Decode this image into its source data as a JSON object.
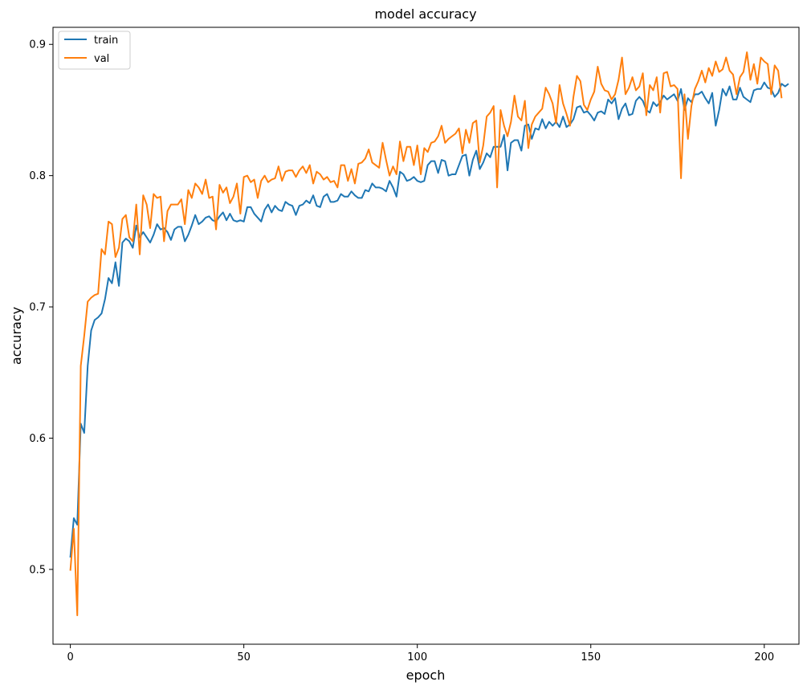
{
  "chart_data": {
    "type": "line",
    "title": "model accuracy",
    "xlabel": "epoch",
    "ylabel": "accuracy",
    "xlim": [
      -5,
      210
    ],
    "ylim": [
      0.443,
      0.913
    ],
    "xticks": [
      0,
      50,
      100,
      150,
      200
    ],
    "yticks": [
      0.5,
      0.6,
      0.7,
      0.8,
      0.9
    ],
    "xtick_labels": [
      "0",
      "50",
      "100",
      "150",
      "200"
    ],
    "ytick_labels": [
      "0.5",
      "0.6",
      "0.7",
      "0.8",
      "0.9"
    ],
    "grid": false,
    "legend_position": "top-left",
    "series": [
      {
        "name": "train",
        "color": "#1f77b4",
        "values": [
          0.509,
          0.539,
          0.534,
          0.611,
          0.604,
          0.655,
          0.682,
          0.69,
          0.692,
          0.695,
          0.706,
          0.722,
          0.718,
          0.734,
          0.716,
          0.749,
          0.752,
          0.75,
          0.745,
          0.762,
          0.753,
          0.757,
          0.753,
          0.749,
          0.755,
          0.763,
          0.759,
          0.76,
          0.757,
          0.751,
          0.759,
          0.761,
          0.761,
          0.75,
          0.755,
          0.762,
          0.77,
          0.763,
          0.765,
          0.768,
          0.769,
          0.766,
          0.765,
          0.769,
          0.772,
          0.766,
          0.771,
          0.766,
          0.765,
          0.766,
          0.765,
          0.776,
          0.776,
          0.771,
          0.768,
          0.765,
          0.774,
          0.778,
          0.772,
          0.777,
          0.774,
          0.773,
          0.78,
          0.778,
          0.777,
          0.77,
          0.777,
          0.778,
          0.781,
          0.779,
          0.785,
          0.777,
          0.776,
          0.784,
          0.786,
          0.78,
          0.78,
          0.781,
          0.786,
          0.784,
          0.784,
          0.788,
          0.785,
          0.783,
          0.783,
          0.789,
          0.788,
          0.794,
          0.791,
          0.791,
          0.79,
          0.788,
          0.796,
          0.791,
          0.784,
          0.803,
          0.801,
          0.796,
          0.797,
          0.799,
          0.796,
          0.795,
          0.796,
          0.808,
          0.811,
          0.811,
          0.802,
          0.812,
          0.811,
          0.8,
          0.801,
          0.801,
          0.808,
          0.815,
          0.816,
          0.8,
          0.812,
          0.819,
          0.805,
          0.81,
          0.817,
          0.814,
          0.822,
          0.822,
          0.822,
          0.831,
          0.804,
          0.825,
          0.827,
          0.827,
          0.819,
          0.838,
          0.839,
          0.828,
          0.836,
          0.835,
          0.843,
          0.836,
          0.841,
          0.838,
          0.841,
          0.837,
          0.845,
          0.837,
          0.839,
          0.843,
          0.852,
          0.853,
          0.848,
          0.849,
          0.846,
          0.842,
          0.848,
          0.849,
          0.847,
          0.858,
          0.855,
          0.859,
          0.843,
          0.851,
          0.855,
          0.846,
          0.847,
          0.857,
          0.86,
          0.857,
          0.85,
          0.848,
          0.856,
          0.853,
          0.856,
          0.861,
          0.858,
          0.86,
          0.862,
          0.857,
          0.866,
          0.85,
          0.859,
          0.856,
          0.862,
          0.862,
          0.864,
          0.859,
          0.855,
          0.863,
          0.838,
          0.85,
          0.866,
          0.861,
          0.868,
          0.858,
          0.858,
          0.867,
          0.86,
          0.858,
          0.856,
          0.865,
          0.866,
          0.866,
          0.871,
          0.867,
          0.866,
          0.86,
          0.863,
          0.87,
          0.868,
          0.87
        ]
      },
      {
        "name": "val",
        "color": "#ff7f0e",
        "values": [
          0.499,
          0.531,
          0.465,
          0.655,
          0.678,
          0.704,
          0.707,
          0.709,
          0.71,
          0.744,
          0.74,
          0.765,
          0.763,
          0.738,
          0.745,
          0.767,
          0.77,
          0.753,
          0.75,
          0.778,
          0.74,
          0.785,
          0.778,
          0.76,
          0.786,
          0.783,
          0.784,
          0.75,
          0.773,
          0.778,
          0.778,
          0.778,
          0.782,
          0.763,
          0.789,
          0.783,
          0.794,
          0.791,
          0.786,
          0.797,
          0.783,
          0.784,
          0.759,
          0.793,
          0.787,
          0.791,
          0.779,
          0.784,
          0.794,
          0.771,
          0.799,
          0.8,
          0.795,
          0.797,
          0.783,
          0.796,
          0.8,
          0.795,
          0.797,
          0.798,
          0.807,
          0.796,
          0.803,
          0.804,
          0.804,
          0.799,
          0.804,
          0.807,
          0.802,
          0.808,
          0.794,
          0.803,
          0.801,
          0.797,
          0.799,
          0.795,
          0.796,
          0.791,
          0.808,
          0.808,
          0.796,
          0.805,
          0.794,
          0.809,
          0.81,
          0.813,
          0.82,
          0.81,
          0.808,
          0.806,
          0.825,
          0.812,
          0.8,
          0.807,
          0.801,
          0.826,
          0.811,
          0.822,
          0.822,
          0.808,
          0.823,
          0.801,
          0.821,
          0.818,
          0.825,
          0.826,
          0.83,
          0.838,
          0.825,
          0.828,
          0.83,
          0.832,
          0.836,
          0.817,
          0.835,
          0.825,
          0.84,
          0.842,
          0.81,
          0.823,
          0.845,
          0.848,
          0.853,
          0.791,
          0.85,
          0.838,
          0.83,
          0.841,
          0.861,
          0.845,
          0.842,
          0.857,
          0.821,
          0.839,
          0.845,
          0.848,
          0.851,
          0.867,
          0.862,
          0.855,
          0.84,
          0.869,
          0.855,
          0.847,
          0.838,
          0.86,
          0.876,
          0.872,
          0.854,
          0.85,
          0.858,
          0.864,
          0.883,
          0.87,
          0.865,
          0.864,
          0.858,
          0.862,
          0.873,
          0.89,
          0.862,
          0.867,
          0.875,
          0.865,
          0.868,
          0.878,
          0.846,
          0.869,
          0.865,
          0.875,
          0.848,
          0.878,
          0.879,
          0.868,
          0.869,
          0.866,
          0.798,
          0.862,
          0.828,
          0.853,
          0.866,
          0.872,
          0.88,
          0.871,
          0.882,
          0.876,
          0.887,
          0.879,
          0.881,
          0.89,
          0.88,
          0.877,
          0.862,
          0.875,
          0.879,
          0.894,
          0.873,
          0.885,
          0.87,
          0.89,
          0.887,
          0.885,
          0.862,
          0.884,
          0.88,
          0.859
        ]
      }
    ]
  }
}
